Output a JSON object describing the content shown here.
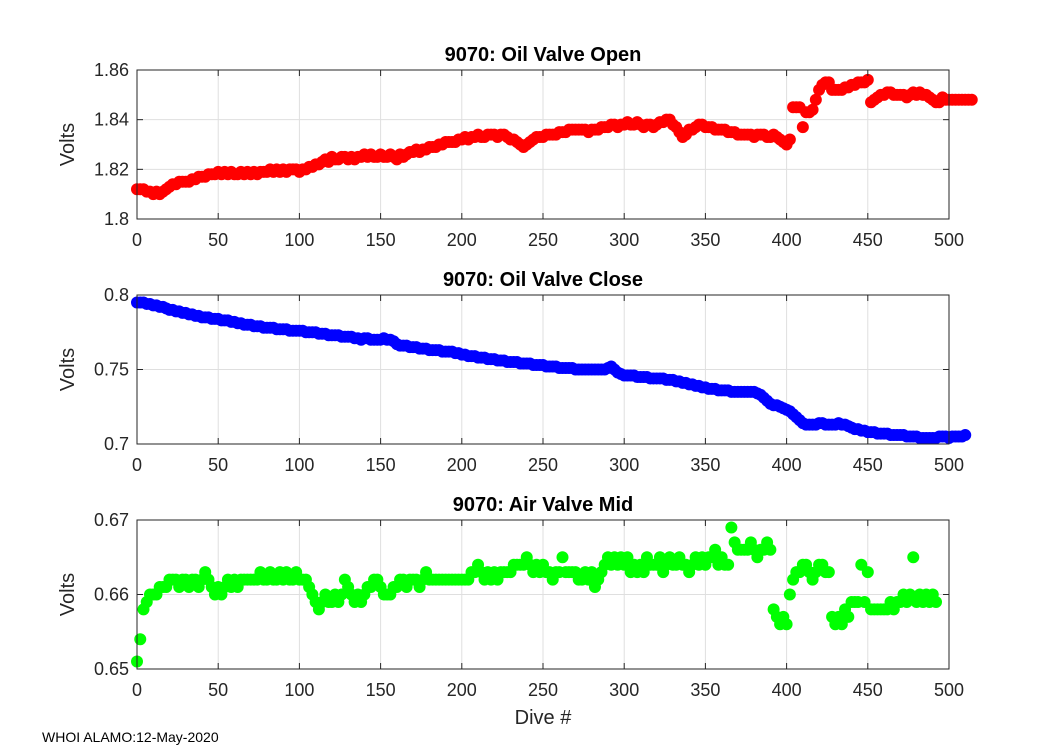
{
  "footer": "WHOI ALAMO:12-May-2020",
  "chart_data": [
    {
      "type": "scatter",
      "title": "9070: Oil Valve Open",
      "xlabel": "",
      "ylabel": "Volts",
      "xlim": [
        0,
        500
      ],
      "ylim": [
        1.8,
        1.86
      ],
      "xticks": [
        0,
        50,
        100,
        150,
        200,
        250,
        300,
        350,
        400,
        450,
        500
      ],
      "yticks": [
        1.8,
        1.82,
        1.84,
        1.86
      ],
      "ytick_labels": [
        "1.8",
        "1.82",
        "1.84",
        "1.86"
      ],
      "color": "#ff0000",
      "grid": true,
      "series": [
        {
          "name": "Oil Valve Open",
          "x_step": 2,
          "values": [
            1.812,
            1.812,
            1.812,
            1.811,
            1.811,
            1.81,
            1.811,
            1.81,
            1.811,
            1.812,
            1.813,
            1.814,
            1.814,
            1.815,
            1.815,
            1.815,
            1.815,
            1.816,
            1.816,
            1.817,
            1.817,
            1.817,
            1.818,
            1.818,
            1.818,
            1.819,
            1.818,
            1.819,
            1.818,
            1.819,
            1.818,
            1.818,
            1.819,
            1.818,
            1.819,
            1.818,
            1.819,
            1.818,
            1.819,
            1.819,
            1.819,
            1.82,
            1.819,
            1.82,
            1.819,
            1.82,
            1.819,
            1.82,
            1.82,
            1.82,
            1.819,
            1.82,
            1.82,
            1.821,
            1.821,
            1.822,
            1.822,
            1.823,
            1.824,
            1.823,
            1.825,
            1.824,
            1.824,
            1.825,
            1.825,
            1.824,
            1.825,
            1.824,
            1.825,
            1.825,
            1.826,
            1.825,
            1.826,
            1.825,
            1.825,
            1.826,
            1.825,
            1.825,
            1.826,
            1.825,
            1.824,
            1.826,
            1.825,
            1.826,
            1.827,
            1.827,
            1.828,
            1.827,
            1.828,
            1.828,
            1.829,
            1.829,
            1.829,
            1.83,
            1.83,
            1.831,
            1.831,
            1.831,
            1.831,
            1.832,
            1.832,
            1.833,
            1.832,
            1.833,
            1.833,
            1.834,
            1.833,
            1.833,
            1.834,
            1.834,
            1.834,
            1.833,
            1.834,
            1.834,
            1.833,
            1.832,
            1.832,
            1.831,
            1.83,
            1.829,
            1.83,
            1.831,
            1.832,
            1.833,
            1.833,
            1.833,
            1.834,
            1.834,
            1.834,
            1.834,
            1.835,
            1.835,
            1.835,
            1.836,
            1.836,
            1.836,
            1.836,
            1.836,
            1.836,
            1.835,
            1.836,
            1.836,
            1.836,
            1.837,
            1.837,
            1.837,
            1.838,
            1.838,
            1.837,
            1.838,
            1.838,
            1.839,
            1.838,
            1.838,
            1.839,
            1.838,
            1.837,
            1.838,
            1.838,
            1.837,
            1.838,
            1.839,
            1.839,
            1.84,
            1.84,
            1.838,
            1.837,
            1.835,
            1.833,
            1.834,
            1.836,
            1.836,
            1.837,
            1.838,
            1.838,
            1.837,
            1.837,
            1.837,
            1.836,
            1.836,
            1.836,
            1.836,
            1.835,
            1.835,
            1.835,
            1.834,
            1.834,
            1.834,
            1.834,
            1.834,
            1.833,
            1.834,
            1.834,
            1.834,
            1.833,
            1.833,
            1.834,
            1.833,
            1.832,
            1.831,
            1.83,
            1.832,
            1.845,
            1.845,
            1.845,
            1.837,
            1.843,
            1.843,
            1.844,
            1.848,
            1.852,
            1.854,
            1.855,
            1.855,
            1.852,
            1.852,
            1.852,
            1.852,
            1.853,
            1.853,
            1.854,
            1.854,
            1.855,
            1.855,
            1.855,
            1.856,
            1.847,
            1.848,
            1.849,
            1.85,
            1.85,
            1.851,
            1.851,
            1.85,
            1.85,
            1.85,
            1.85,
            1.849,
            1.85,
            1.851,
            1.85,
            1.851,
            1.85,
            1.85,
            1.849,
            1.848,
            1.847,
            1.847,
            1.849,
            1.848,
            1.848,
            1.848,
            1.848,
            1.848,
            1.848,
            1.848,
            1.848,
            1.848
          ]
        }
      ]
    },
    {
      "type": "scatter",
      "title": "9070: Oil Valve Close",
      "xlabel": "",
      "ylabel": "Volts",
      "xlim": [
        0,
        500
      ],
      "ylim": [
        0.7,
        0.8
      ],
      "xticks": [
        0,
        50,
        100,
        150,
        200,
        250,
        300,
        350,
        400,
        450,
        500
      ],
      "yticks": [
        0.7,
        0.75,
        0.8
      ],
      "ytick_labels": [
        "0.7",
        "0.75",
        "0.8"
      ],
      "color": "#0000ff",
      "grid": true,
      "series": [
        {
          "name": "Oil Valve Close",
          "x_step": 2,
          "values": [
            0.795,
            0.795,
            0.795,
            0.794,
            0.794,
            0.793,
            0.793,
            0.792,
            0.792,
            0.791,
            0.79,
            0.79,
            0.789,
            0.789,
            0.788,
            0.788,
            0.787,
            0.787,
            0.786,
            0.786,
            0.785,
            0.785,
            0.785,
            0.784,
            0.784,
            0.784,
            0.783,
            0.783,
            0.783,
            0.782,
            0.782,
            0.781,
            0.781,
            0.78,
            0.78,
            0.78,
            0.779,
            0.779,
            0.779,
            0.778,
            0.778,
            0.778,
            0.778,
            0.777,
            0.777,
            0.777,
            0.777,
            0.776,
            0.776,
            0.776,
            0.776,
            0.776,
            0.775,
            0.775,
            0.775,
            0.775,
            0.774,
            0.774,
            0.774,
            0.773,
            0.773,
            0.773,
            0.773,
            0.772,
            0.772,
            0.772,
            0.772,
            0.771,
            0.771,
            0.77,
            0.771,
            0.771,
            0.77,
            0.77,
            0.77,
            0.77,
            0.771,
            0.77,
            0.77,
            0.769,
            0.767,
            0.766,
            0.766,
            0.766,
            0.765,
            0.765,
            0.765,
            0.764,
            0.764,
            0.764,
            0.763,
            0.763,
            0.763,
            0.763,
            0.762,
            0.762,
            0.762,
            0.762,
            0.761,
            0.761,
            0.76,
            0.76,
            0.759,
            0.759,
            0.759,
            0.758,
            0.758,
            0.758,
            0.757,
            0.757,
            0.757,
            0.756,
            0.756,
            0.756,
            0.755,
            0.755,
            0.755,
            0.755,
            0.754,
            0.754,
            0.754,
            0.754,
            0.753,
            0.753,
            0.753,
            0.753,
            0.752,
            0.752,
            0.752,
            0.752,
            0.751,
            0.751,
            0.751,
            0.751,
            0.751,
            0.75,
            0.75,
            0.75,
            0.75,
            0.75,
            0.75,
            0.75,
            0.75,
            0.75,
            0.75,
            0.751,
            0.752,
            0.75,
            0.748,
            0.747,
            0.746,
            0.746,
            0.746,
            0.746,
            0.745,
            0.745,
            0.745,
            0.745,
            0.744,
            0.744,
            0.744,
            0.744,
            0.744,
            0.743,
            0.743,
            0.743,
            0.742,
            0.742,
            0.741,
            0.741,
            0.74,
            0.74,
            0.739,
            0.739,
            0.738,
            0.738,
            0.737,
            0.737,
            0.737,
            0.736,
            0.736,
            0.736,
            0.736,
            0.735,
            0.735,
            0.735,
            0.735,
            0.735,
            0.735,
            0.735,
            0.735,
            0.734,
            0.733,
            0.731,
            0.729,
            0.727,
            0.726,
            0.726,
            0.725,
            0.724,
            0.723,
            0.722,
            0.72,
            0.718,
            0.716,
            0.714,
            0.713,
            0.713,
            0.713,
            0.713,
            0.714,
            0.714,
            0.713,
            0.713,
            0.713,
            0.713,
            0.714,
            0.713,
            0.713,
            0.712,
            0.711,
            0.71,
            0.71,
            0.709,
            0.709,
            0.708,
            0.708,
            0.708,
            0.707,
            0.707,
            0.707,
            0.707,
            0.706,
            0.706,
            0.706,
            0.706,
            0.706,
            0.705,
            0.705,
            0.705,
            0.705,
            0.704,
            0.704,
            0.704,
            0.704,
            0.704,
            0.704,
            0.705,
            0.705,
            0.705,
            0.704,
            0.705,
            0.705,
            0.705,
            0.705,
            0.706
          ]
        }
      ]
    },
    {
      "type": "scatter",
      "title": "9070: Air Valve Mid",
      "xlabel": "Dive #",
      "ylabel": "Volts",
      "xlim": [
        0,
        500
      ],
      "ylim": [
        0.65,
        0.67
      ],
      "xticks": [
        0,
        50,
        100,
        150,
        200,
        250,
        300,
        350,
        400,
        450,
        500
      ],
      "yticks": [
        0.65,
        0.66,
        0.67
      ],
      "ytick_labels": [
        "0.65",
        "0.66",
        "0.67"
      ],
      "color": "#00ff00",
      "grid": true,
      "series": [
        {
          "name": "Air Valve Mid",
          "x_step": 2,
          "values": [
            0.651,
            0.654,
            0.658,
            0.659,
            0.66,
            0.66,
            0.66,
            0.661,
            0.661,
            0.661,
            0.662,
            0.662,
            0.662,
            0.661,
            0.662,
            0.662,
            0.661,
            0.662,
            0.662,
            0.661,
            0.662,
            0.663,
            0.662,
            0.661,
            0.66,
            0.661,
            0.66,
            0.661,
            0.662,
            0.661,
            0.662,
            0.661,
            0.662,
            0.662,
            0.662,
            0.662,
            0.662,
            0.662,
            0.663,
            0.662,
            0.662,
            0.663,
            0.662,
            0.662,
            0.663,
            0.662,
            0.663,
            0.662,
            0.662,
            0.663,
            0.662,
            0.662,
            0.662,
            0.661,
            0.66,
            0.659,
            0.658,
            0.659,
            0.66,
            0.659,
            0.659,
            0.66,
            0.659,
            0.66,
            0.662,
            0.661,
            0.66,
            0.659,
            0.66,
            0.659,
            0.66,
            0.661,
            0.661,
            0.662,
            0.662,
            0.661,
            0.66,
            0.66,
            0.66,
            0.661,
            0.661,
            0.662,
            0.662,
            0.661,
            0.662,
            0.662,
            0.662,
            0.661,
            0.662,
            0.663,
            0.662,
            0.662,
            0.662,
            0.662,
            0.662,
            0.662,
            0.662,
            0.662,
            0.662,
            0.662,
            0.662,
            0.662,
            0.662,
            0.663,
            0.663,
            0.664,
            0.663,
            0.662,
            0.663,
            0.662,
            0.663,
            0.662,
            0.663,
            0.663,
            0.663,
            0.663,
            0.664,
            0.664,
            0.664,
            0.664,
            0.665,
            0.664,
            0.663,
            0.664,
            0.663,
            0.664,
            0.663,
            0.663,
            0.662,
            0.663,
            0.663,
            0.665,
            0.663,
            0.663,
            0.663,
            0.663,
            0.662,
            0.662,
            0.663,
            0.662,
            0.663,
            0.661,
            0.662,
            0.663,
            0.664,
            0.665,
            0.664,
            0.665,
            0.664,
            0.665,
            0.664,
            0.665,
            0.663,
            0.664,
            0.663,
            0.664,
            0.663,
            0.665,
            0.664,
            0.664,
            0.664,
            0.665,
            0.663,
            0.664,
            0.665,
            0.664,
            0.664,
            0.665,
            0.664,
            0.664,
            0.663,
            0.664,
            0.665,
            0.664,
            0.665,
            0.664,
            0.665,
            0.665,
            0.666,
            0.664,
            0.665,
            0.664,
            0.664,
            0.669,
            0.667,
            0.666,
            0.666,
            0.666,
            0.666,
            0.667,
            0.666,
            0.665,
            0.666,
            0.666,
            0.667,
            0.666,
            0.658,
            0.657,
            0.656,
            0.657,
            0.656,
            0.66,
            0.662,
            0.663,
            0.663,
            0.664,
            0.664,
            0.663,
            0.662,
            0.663,
            0.664,
            0.664,
            0.663,
            0.663,
            0.657,
            0.656,
            0.657,
            0.656,
            0.658,
            0.657,
            0.659,
            0.659,
            0.659,
            0.664,
            0.659,
            0.663,
            0.658,
            0.658,
            0.658,
            0.658,
            0.658,
            0.658,
            0.659,
            0.658,
            0.659,
            0.659,
            0.66,
            0.659,
            0.66,
            0.665,
            0.659,
            0.66,
            0.659,
            0.66,
            0.659,
            0.66,
            0.659
          ]
        }
      ]
    }
  ]
}
